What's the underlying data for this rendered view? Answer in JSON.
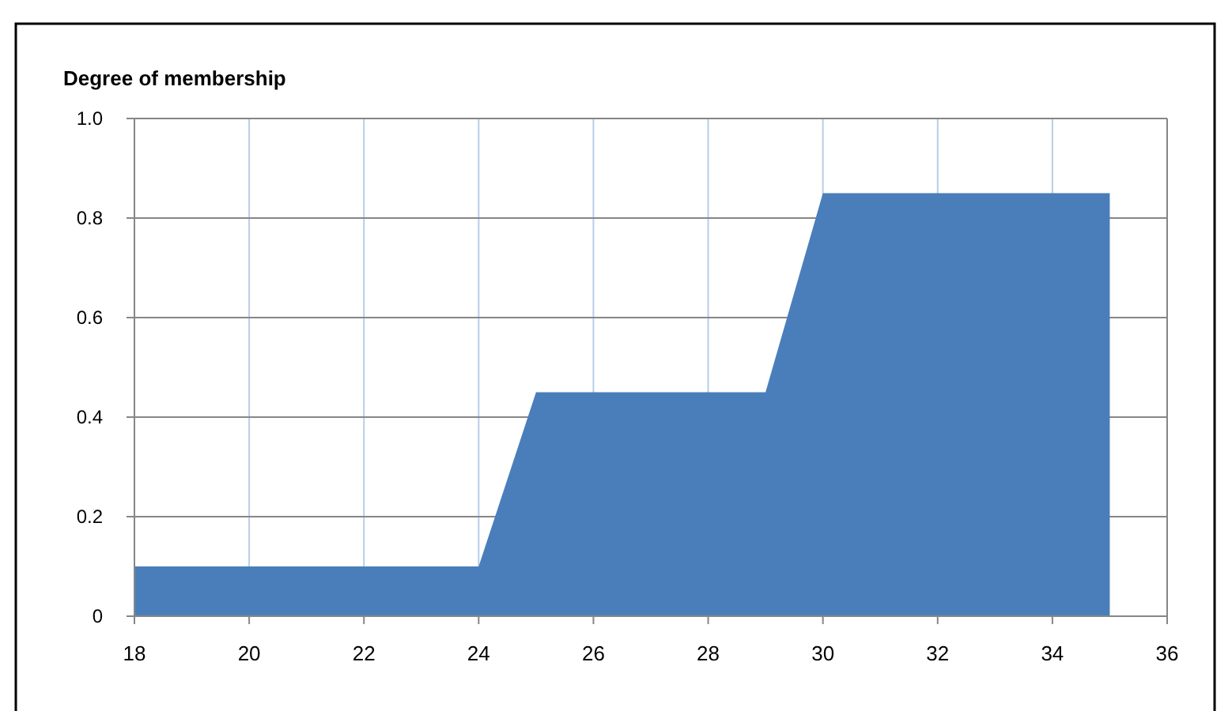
{
  "chart_data": {
    "type": "area",
    "ylabel": "Degree of membership",
    "x": [
      18,
      24,
      25,
      29,
      30,
      35
    ],
    "series": [
      {
        "color": "#4a7ebb",
        "values": [
          0.1,
          0.1,
          0.45,
          0.45,
          0.85,
          0.85
        ]
      }
    ],
    "xlim": [
      18,
      36
    ],
    "xticks": [
      18,
      20,
      22,
      24,
      26,
      28,
      30,
      32,
      34,
      36
    ],
    "ylim": [
      0,
      1
    ],
    "yticks": [
      {
        "value": 0,
        "label": "0"
      },
      {
        "value": 0.2,
        "label": "0.2"
      },
      {
        "value": 0.4,
        "label": "0.4"
      },
      {
        "value": 0.6,
        "label": "0.6"
      },
      {
        "value": 0.8,
        "label": "0.8"
      },
      {
        "value": 1,
        "label": "1.0"
      }
    ],
    "grid": true
  }
}
